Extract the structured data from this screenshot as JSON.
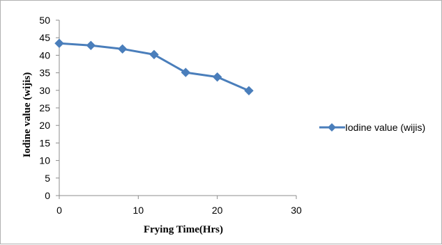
{
  "chart_data": {
    "type": "line",
    "title": "",
    "xlabel": "Frying   Time(Hrs)",
    "ylabel": "Iodine  value (wijis)",
    "xlim": [
      0,
      30
    ],
    "ylim": [
      0,
      50
    ],
    "x_ticks": [
      0,
      10,
      20,
      30
    ],
    "y_ticks": [
      0,
      5,
      10,
      15,
      20,
      25,
      30,
      35,
      40,
      45,
      50
    ],
    "grid": false,
    "legend_position": "right",
    "series": [
      {
        "name": "Iodine value (wijis)",
        "color": "#4a7ebb",
        "marker": "diamond",
        "x": [
          0,
          4,
          8,
          12,
          16,
          20,
          24
        ],
        "y": [
          43.4,
          42.8,
          41.8,
          40.2,
          35.1,
          33.8,
          29.9
        ]
      }
    ]
  }
}
